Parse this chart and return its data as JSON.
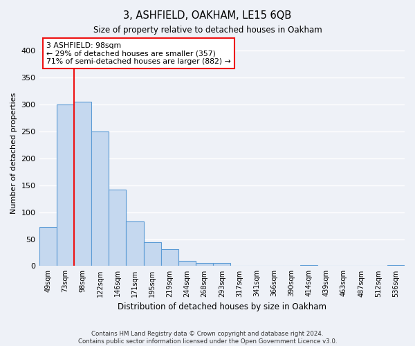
{
  "title": "3, ASHFIELD, OAKHAM, LE15 6QB",
  "subtitle": "Size of property relative to detached houses in Oakham",
  "xlabel": "Distribution of detached houses by size in Oakham",
  "ylabel": "Number of detached properties",
  "bar_labels": [
    "49sqm",
    "73sqm",
    "98sqm",
    "122sqm",
    "146sqm",
    "171sqm",
    "195sqm",
    "219sqm",
    "244sqm",
    "268sqm",
    "293sqm",
    "317sqm",
    "341sqm",
    "366sqm",
    "390sqm",
    "414sqm",
    "439sqm",
    "463sqm",
    "487sqm",
    "512sqm",
    "536sqm"
  ],
  "bar_values": [
    73,
    300,
    305,
    250,
    142,
    83,
    44,
    32,
    10,
    6,
    6,
    0,
    0,
    0,
    0,
    2,
    0,
    0,
    0,
    0,
    2
  ],
  "bar_color": "#c5d8ef",
  "bar_edge_color": "#5b9bd5",
  "highlight_bar_index": 2,
  "highlight_color": "#ee1111",
  "annotation_lines": [
    "3 ASHFIELD: 98sqm",
    "← 29% of detached houses are smaller (357)",
    "71% of semi-detached houses are larger (882) →"
  ],
  "ylim": [
    0,
    420
  ],
  "yticks": [
    0,
    50,
    100,
    150,
    200,
    250,
    300,
    350,
    400
  ],
  "footer_line1": "Contains HM Land Registry data © Crown copyright and database right 2024.",
  "footer_line2": "Contains public sector information licensed under the Open Government Licence v3.0.",
  "bg_color": "#eef1f7"
}
